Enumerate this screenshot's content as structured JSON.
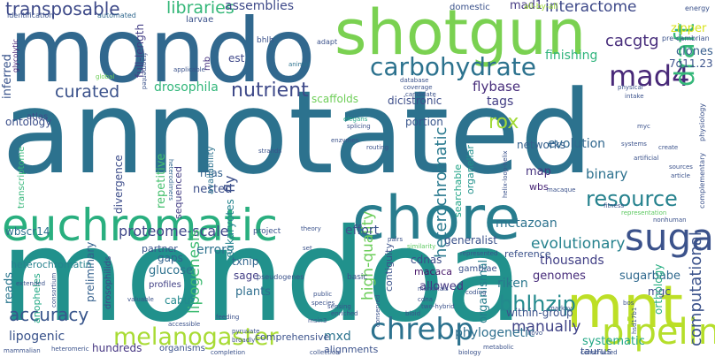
{
  "words": [
    {
      "text": "annotated",
      "color": "#2c728e"
    },
    {
      "text": "mondoa",
      "color": "#21918c"
    },
    {
      "text": "mondo",
      "color": "#31688e"
    },
    {
      "text": "shotgun",
      "color": "#7ad151"
    },
    {
      "text": "euchromatic",
      "color": "#29af7f"
    },
    {
      "text": "chore",
      "color": "#287d8e"
    },
    {
      "text": "mnt",
      "color": "#bddf26"
    },
    {
      "text": "sugar",
      "color": "#3b528b"
    },
    {
      "text": "pipeline",
      "color": "#b5de2b"
    },
    {
      "text": "melanogaster",
      "color": "#a8db34"
    },
    {
      "text": "chrebp",
      "color": "#2c728e"
    },
    {
      "text": "carbohydrate",
      "color": "#2c728e"
    },
    {
      "text": "transposable",
      "color": "#3e4a89"
    },
    {
      "text": "mad4",
      "color": "#482878"
    },
    {
      "text": "draft",
      "color": "#35b779"
    },
    {
      "text": "nutrient",
      "color": "#3e4989"
    },
    {
      "text": "libraries",
      "color": "#35b779"
    },
    {
      "text": "curated",
      "color": "#3b528b"
    },
    {
      "text": "resource",
      "color": "#26828e"
    },
    {
      "text": "bhlhzip",
      "color": "#238a8d"
    },
    {
      "text": "accuracy",
      "color": "#39568c"
    },
    {
      "text": "interactome",
      "color": "#3e4989"
    },
    {
      "text": "cacgtg",
      "color": "#472d7b"
    },
    {
      "text": "heterochromatic",
      "color": "#29798e"
    },
    {
      "text": "proteome-scale",
      "color": "#3f4788"
    },
    {
      "text": "evolutionary",
      "color": "#26828e"
    },
    {
      "text": "computational",
      "color": "#3b528b"
    },
    {
      "text": "manually",
      "color": "#414487"
    },
    {
      "text": "rox",
      "color": "#a2da37"
    },
    {
      "text": "assemblies",
      "color": "#3e4989"
    },
    {
      "text": "lipogenesis",
      "color": "#3fbc73"
    },
    {
      "text": "high-quality",
      "color": "#6ccd5a"
    },
    {
      "text": "evolution",
      "color": "#31688e"
    },
    {
      "text": "flybase",
      "color": "#472d7b"
    },
    {
      "text": "finishing",
      "color": "#2fb47c"
    },
    {
      "text": "drosophila",
      "color": "#32b67a"
    },
    {
      "text": "metazoan",
      "color": "#2c728e"
    },
    {
      "text": "errors",
      "color": "#2c728e"
    },
    {
      "text": "effort",
      "color": "#3b528b"
    },
    {
      "text": "thousands",
      "color": "#424086"
    },
    {
      "text": "genomes",
      "color": "#472c7a"
    },
    {
      "text": "tags",
      "color": "#433e85"
    },
    {
      "text": "riken",
      "color": "#2a788e"
    },
    {
      "text": "organismal",
      "color": "#277f8e"
    },
    {
      "text": "phylogenetic",
      "color": "#2e6f8e"
    },
    {
      "text": "mxd",
      "color": "#2c738e"
    },
    {
      "text": "systematic",
      "color": "#22a785"
    },
    {
      "text": "lipogenic",
      "color": "#3a538b"
    },
    {
      "text": "sugarbabe",
      "color": "#30698e"
    },
    {
      "text": "binary",
      "color": "#2d718e"
    },
    {
      "text": "reads",
      "color": "#2a768e"
    },
    {
      "text": "mad1",
      "color": "#443983"
    },
    {
      "text": "hundreds",
      "color": "#453581"
    },
    {
      "text": "inferred",
      "color": "#3a548c"
    },
    {
      "text": "repetitive",
      "color": "#46c06f"
    },
    {
      "text": "ontology",
      "color": "#3c508b"
    },
    {
      "text": "wbscr14",
      "color": "#2d708e"
    },
    {
      "text": "fly",
      "color": "#3c4f8a"
    },
    {
      "text": "eukaryotes",
      "color": "#25848e"
    },
    {
      "text": "divergence",
      "color": "#3d4d8a"
    },
    {
      "text": "sequenced",
      "color": "#433d84"
    },
    {
      "text": "nested",
      "color": "#3c4f8a"
    },
    {
      "text": "rnas",
      "color": "#34618d"
    },
    {
      "text": "sage",
      "color": "#433e85"
    },
    {
      "text": "plants",
      "color": "#2e6e8e"
    },
    {
      "text": "glucose",
      "color": "#2d718e"
    },
    {
      "text": "gaps",
      "color": "#32648e"
    },
    {
      "text": "txnip",
      "color": "#31668e"
    },
    {
      "text": "cabut",
      "color": "#23898e"
    },
    {
      "text": "preliminary",
      "color": "#34608d"
    },
    {
      "text": "allowed",
      "color": "#453581"
    },
    {
      "text": "cdnas",
      "color": "#3d4e8a"
    },
    {
      "text": "map",
      "color": "#46337f"
    },
    {
      "text": "wbs",
      "color": "#482576"
    },
    {
      "text": "networks",
      "color": "#35608d"
    },
    {
      "text": "generalist",
      "color": "#3b528b"
    },
    {
      "text": "within-group",
      "color": "#3b528b"
    },
    {
      "text": "scaffolds",
      "color": "#6ece58"
    },
    {
      "text": "dicistronic",
      "color": "#3d4e8a"
    },
    {
      "text": "full-length",
      "color": "#433e85"
    },
    {
      "text": "est",
      "color": "#3f4889"
    },
    {
      "text": "portion",
      "color": "#39568c"
    },
    {
      "text": "mb",
      "color": "#46307e"
    },
    {
      "text": "profiles",
      "color": "#424186"
    },
    {
      "text": "partner",
      "color": "#39558c"
    },
    {
      "text": "reference",
      "color": "#3b528b"
    },
    {
      "text": "organellar",
      "color": "#21918c"
    },
    {
      "text": "searchable",
      "color": "#20a386"
    },
    {
      "text": "mgc",
      "color": "#3e4989"
    },
    {
      "text": "orthology",
      "color": "#26ad81"
    },
    {
      "text": "zipper",
      "color": "#d8e219"
    },
    {
      "text": "clones",
      "color": "#365d8d"
    },
    {
      "text": "7q11.23",
      "color": "#3b528b"
    },
    {
      "text": "comprehensive",
      "color": "#3b528b"
    },
    {
      "text": "alignments",
      "color": "#3b528b"
    },
    {
      "text": "taurus",
      "color": "#3b528b"
    },
    {
      "text": "organisms",
      "color": "#3b528b"
    },
    {
      "text": "anopheles",
      "color": "#22a884"
    },
    {
      "text": "drosophilids",
      "color": "#3f4788"
    },
    {
      "text": "heterochromatin",
      "color": "#26828e"
    },
    {
      "text": "transcriptome",
      "color": "#35b779"
    },
    {
      "text": "atlas",
      "color": "#3e4989"
    },
    {
      "text": "availability",
      "color": "#2c728e"
    },
    {
      "text": "contiguity",
      "color": "#3b528b"
    },
    {
      "text": "gambiae",
      "color": "#3b528b"
    },
    {
      "text": "macaca",
      "color": "#48186a"
    },
    {
      "text": "larvae",
      "color": "#3b528b"
    },
    {
      "text": "domestic",
      "color": "#3b528b"
    },
    {
      "text": "bhlh",
      "color": "#3b528b"
    },
    {
      "text": "adapt",
      "color": "#3b528b"
    },
    {
      "text": "all-by-all",
      "color": "#a0da39"
    },
    {
      "text": "heterodimers",
      "color": "#31668e"
    },
    {
      "text": "glycolytic",
      "color": "#482475"
    },
    {
      "text": "automated",
      "color": "#31688e"
    },
    {
      "text": "identification",
      "color": "#3b528b"
    },
    {
      "text": "global",
      "color": "#6ece58"
    },
    {
      "text": "fragmented",
      "color": "#3b528b"
    },
    {
      "text": "applicable",
      "color": "#3b528b"
    },
    {
      "text": "animal",
      "color": "#2c728e"
    },
    {
      "text": "database",
      "color": "#3b528b"
    },
    {
      "text": "coverage",
      "color": "#3b528b"
    },
    {
      "text": "candidate",
      "color": "#3b528b"
    },
    {
      "text": "physical",
      "color": "#3b528b"
    },
    {
      "text": "intake",
      "color": "#3b528b"
    },
    {
      "text": "myc",
      "color": "#3b528b"
    },
    {
      "text": "systems",
      "color": "#3b528b"
    },
    {
      "text": "elegans",
      "color": "#22a785"
    },
    {
      "text": "splicing",
      "color": "#3b528b"
    },
    {
      "text": "enzymes",
      "color": "#3b528b"
    },
    {
      "text": "routing",
      "color": "#3b528b"
    },
    {
      "text": "strands",
      "color": "#3b528b"
    },
    {
      "text": "project",
      "color": "#3b528b"
    },
    {
      "text": "theory",
      "color": "#3b528b"
    },
    {
      "text": "set",
      "color": "#3b528b"
    },
    {
      "text": "pairs",
      "color": "#3b528b"
    },
    {
      "text": "similarity",
      "color": "#5ec962"
    },
    {
      "text": "represented",
      "color": "#3b528b"
    },
    {
      "text": "macaque",
      "color": "#3b528b"
    },
    {
      "text": "fitness",
      "color": "#3b528b"
    },
    {
      "text": "representation",
      "color": "#5ec962"
    },
    {
      "text": "nonhuman",
      "color": "#3b528b"
    },
    {
      "text": "artificial",
      "color": "#3b528b"
    },
    {
      "text": "sources",
      "color": "#3b528b"
    },
    {
      "text": "article",
      "color": "#3b528b"
    },
    {
      "text": "create",
      "color": "#3b528b"
    },
    {
      "text": "helix-loop-helix",
      "color": "#3b528b"
    },
    {
      "text": "pre-cambrian",
      "color": "#3b528b"
    },
    {
      "text": "energy",
      "color": "#3b528b"
    },
    {
      "text": "complementary",
      "color": "#3b528b"
    },
    {
      "text": "physiology",
      "color": "#3b528b"
    },
    {
      "text": "pseudogenes",
      "color": "#3b528b"
    },
    {
      "text": "basic",
      "color": "#3b528b"
    },
    {
      "text": "extended",
      "color": "#3b528b"
    },
    {
      "text": "consortium",
      "color": "#3b528b"
    },
    {
      "text": "valuable",
      "color": "#3b528b"
    },
    {
      "text": "accessible",
      "color": "#3b528b"
    },
    {
      "text": "public",
      "color": "#3b528b"
    },
    {
      "text": "species",
      "color": "#3b528b"
    },
    {
      "text": "sensing",
      "color": "#3b528b"
    },
    {
      "text": "enriched",
      "color": "#3b528b"
    },
    {
      "text": "msin3",
      "color": "#3b528b"
    },
    {
      "text": "bioid",
      "color": "#3b528b"
    },
    {
      "text": "two-hybrid",
      "color": "#3b528b"
    },
    {
      "text": "mammals",
      "color": "#3b528b"
    },
    {
      "text": "coding",
      "color": "#3b528b"
    },
    {
      "text": "cdna",
      "color": "#3b528b"
    },
    {
      "text": "markov",
      "color": "#3b528b"
    },
    {
      "text": "bos",
      "color": "#3b528b"
    },
    {
      "text": "hsd17b1",
      "color": "#3b528b"
    },
    {
      "text": "novo",
      "color": "#3b528b"
    },
    {
      "text": "metabolic",
      "color": "#3b528b"
    },
    {
      "text": "biology",
      "color": "#3b528b"
    },
    {
      "text": "constructed",
      "color": "#3b528b"
    },
    {
      "text": "conserved",
      "color": "#3b528b"
    },
    {
      "text": "collection",
      "color": "#3b528b"
    },
    {
      "text": "completion",
      "color": "#3b528b"
    },
    {
      "text": "broadly",
      "color": "#3b528b"
    },
    {
      "text": "pyruvate",
      "color": "#3b528b"
    },
    {
      "text": "feeding",
      "color": "#3b528b"
    },
    {
      "text": "mammalian",
      "color": "#3b528b"
    },
    {
      "text": "heteromeric",
      "color": "#3b528b"
    }
  ]
}
